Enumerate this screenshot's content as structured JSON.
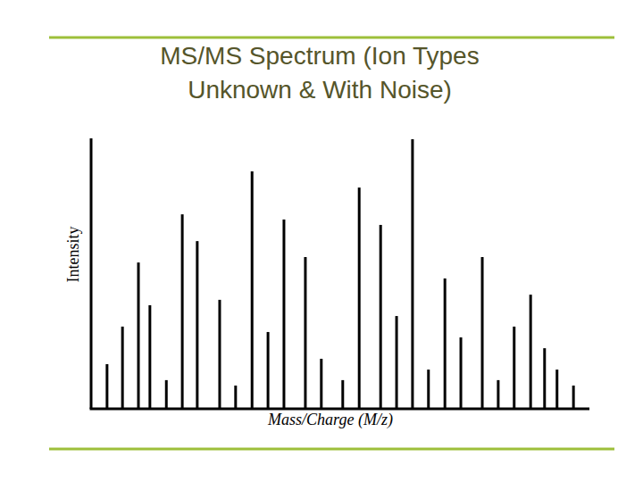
{
  "chart_data": {
    "type": "stem",
    "title": "MS/MS Spectrum (Ion Types Unknown & With Noise)",
    "x_label": "Mass/Charge (M/z)",
    "y_label": "Intensity",
    "x": [
      3.2,
      6.3,
      9.5,
      11.8,
      15.1,
      18.3,
      21.3,
      25.8,
      29.0,
      32.3,
      35.5,
      38.7,
      43.0,
      46.2,
      50.5,
      53.8,
      58.1,
      61.3,
      64.5,
      67.7,
      71.0,
      74.2,
      78.5,
      81.7,
      84.9,
      88.2,
      91.0,
      93.5,
      96.8
    ],
    "values": [
      16.5,
      30.4,
      54.1,
      38.3,
      10.6,
      71.9,
      62.0,
      40.3,
      8.6,
      87.8,
      28.4,
      70.0,
      56.1,
      18.5,
      10.6,
      81.8,
      68.0,
      34.3,
      99.7,
      14.5,
      48.2,
      26.4,
      56.1,
      10.6,
      30.4,
      42.2,
      22.4,
      14.5,
      8.6
    ],
    "color": "#000000",
    "xlim": [
      0,
      100
    ],
    "ylim": [
      0,
      100
    ],
    "tick_labels": false,
    "grid": false
  }
}
